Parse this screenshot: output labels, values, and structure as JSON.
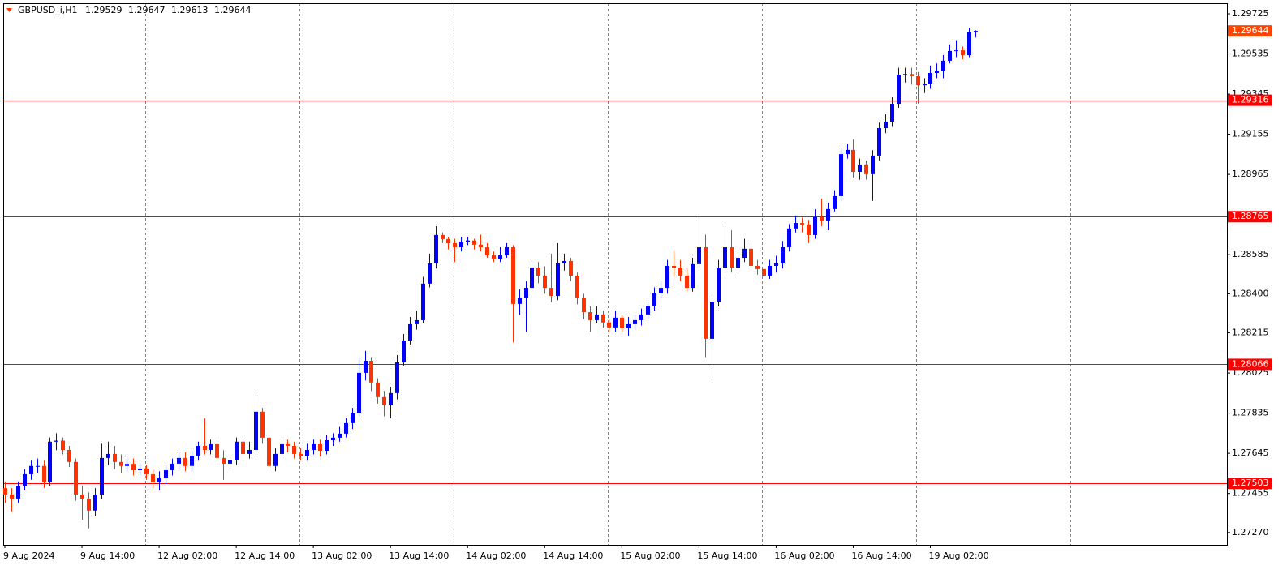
{
  "chart_data": {
    "type": "candlestick",
    "symbol": "GBPUSD_i,H1",
    "categories": [
      "9 Aug 2024",
      null,
      null,
      null,
      null,
      null,
      null,
      null,
      null,
      null,
      null,
      null,
      "9 Aug 14:00",
      null,
      null,
      null,
      null,
      null,
      null,
      null,
      null,
      null,
      null,
      null,
      "12 Aug 02:00",
      null,
      null,
      null,
      null,
      null,
      null,
      null,
      null,
      null,
      null,
      null,
      "12 Aug 14:00",
      null,
      null,
      null,
      null,
      null,
      null,
      null,
      null,
      null,
      null,
      null,
      "13 Aug 02:00",
      null,
      null,
      null,
      null,
      null,
      null,
      null,
      null,
      null,
      null,
      null,
      "13 Aug 14:00",
      null,
      null,
      null,
      null,
      null,
      null,
      null,
      null,
      null,
      null,
      null,
      "14 Aug 02:00",
      null,
      null,
      null,
      null,
      null,
      null,
      null,
      null,
      null,
      null,
      null,
      "14 Aug 14:00",
      null,
      null,
      null,
      null,
      null,
      null,
      null,
      null,
      null,
      null,
      null,
      "15 Aug 02:00",
      null,
      null,
      null,
      null,
      null,
      null,
      null,
      null,
      null,
      null,
      null,
      "15 Aug 14:00",
      null,
      null,
      null,
      null,
      null,
      null,
      null,
      null,
      null,
      null,
      null,
      "16 Aug 02:00",
      null,
      null,
      null,
      null,
      null,
      null,
      null,
      null,
      null,
      null,
      null,
      "16 Aug 14:00",
      null,
      null,
      null,
      null,
      null,
      null,
      null,
      null,
      null,
      null,
      null,
      "19 Aug 02:00",
      null,
      null,
      null,
      null,
      null,
      null,
      null
    ],
    "open": [
      1.2748,
      1.2745,
      1.27431,
      1.27489,
      1.27546,
      1.27585,
      1.27585,
      1.27508,
      1.277,
      1.27705,
      1.27661,
      1.27604,
      1.2745,
      1.27431,
      1.27374,
      1.2745,
      1.27623,
      1.27642,
      1.27604,
      1.27585,
      1.27595,
      1.27565,
      1.27573,
      1.27546,
      1.27508,
      1.27527,
      1.27565,
      1.27596,
      1.27623,
      1.27585,
      1.27634,
      1.2768,
      1.27661,
      1.27688,
      1.27623,
      1.27596,
      1.27611,
      1.277,
      1.27642,
      1.27661,
      1.27842,
      1.27719,
      1.27585,
      1.27642,
      1.27688,
      1.2768,
      1.27642,
      1.27634,
      1.27661,
      1.27688,
      1.27657,
      1.27707,
      1.27719,
      1.27738,
      1.27788,
      1.27834,
      1.28026,
      1.28083,
      1.2798,
      1.27911,
      1.27872,
      1.2793,
      1.28076,
      1.28179,
      1.28256,
      1.28275,
      1.28448,
      1.28544,
      1.28678,
      1.28659,
      1.28639,
      1.2862,
      1.28647,
      1.28652,
      1.28632,
      1.2862,
      1.28582,
      1.28563,
      1.28582,
      1.2862,
      1.28352,
      1.28379,
      1.28428,
      1.28524,
      1.28486,
      1.28428,
      1.2839,
      1.28544,
      1.28555,
      1.28486,
      1.28379,
      1.28313,
      1.28275,
      1.28302,
      1.28264,
      1.28241,
      1.28287,
      1.28237,
      1.28256,
      1.28275,
      1.28302,
      1.2834,
      1.28402,
      1.28428,
      1.28532,
      1.28524,
      1.28486,
      1.28428,
      1.2854,
      1.2862,
      1.28187,
      1.28363,
      1.28524,
      1.2862,
      1.28524,
      1.2857,
      1.28613,
      1.28532,
      1.28517,
      1.28486,
      1.28532,
      1.28544,
      1.2862,
      1.28709,
      1.28735,
      1.28728,
      1.28678,
      1.28762,
      1.28747,
      1.28801,
      1.28862,
      1.29061,
      1.29081,
      1.28977,
      1.29012,
      1.28966,
      1.29054,
      1.29184,
      1.29215,
      1.29299,
      1.29437,
      1.2944,
      1.2943,
      1.29387,
      1.29395,
      1.29445,
      1.29453,
      1.29503,
      1.29549,
      1.29552,
      1.29529,
      1.29639
    ],
    "high": [
      1.2751,
      1.2748,
      1.2751,
      1.2757,
      1.2761,
      1.2762,
      1.2761,
      1.2772,
      1.2774,
      1.2772,
      1.2768,
      1.2762,
      1.2749,
      1.2746,
      1.2748,
      1.2769,
      1.277,
      1.2768,
      1.2764,
      1.2763,
      1.2762,
      1.276,
      1.2759,
      1.2757,
      1.2756,
      1.2759,
      1.2762,
      1.2765,
      1.2765,
      1.2766,
      1.277,
      1.2781,
      1.2771,
      1.2771,
      1.2766,
      1.2764,
      1.2772,
      1.2773,
      1.277,
      1.2792,
      1.2786,
      1.2773,
      1.2767,
      1.2771,
      1.2771,
      1.277,
      1.2767,
      1.2769,
      1.2771,
      1.2771,
      1.2773,
      1.2774,
      1.2777,
      1.2781,
      1.2786,
      1.281,
      1.2813,
      1.281,
      1.28,
      1.2794,
      1.2796,
      1.2811,
      1.2821,
      1.2829,
      1.2832,
      1.2848,
      1.2859,
      1.2872,
      1.2869,
      1.2867,
      1.2866,
      1.2867,
      1.2867,
      1.2866,
      1.2868,
      1.2864,
      1.286,
      1.2862,
      1.2864,
      1.2863,
      1.2842,
      1.2846,
      1.2856,
      1.2855,
      1.2853,
      1.2859,
      1.2864,
      1.2859,
      1.2857,
      1.285,
      1.284,
      1.2834,
      1.2834,
      1.2832,
      1.2828,
      1.2832,
      1.283,
      1.2829,
      1.283,
      1.2833,
      1.2836,
      1.2843,
      1.2846,
      1.2856,
      1.286,
      1.2856,
      1.2852,
      1.2857,
      1.2876,
      1.2868,
      1.2838,
      1.2856,
      1.2872,
      1.287,
      1.2861,
      1.2866,
      1.2865,
      1.2856,
      1.286,
      1.2856,
      1.2858,
      1.2865,
      1.2873,
      1.2877,
      1.2876,
      1.2875,
      1.288,
      1.2885,
      1.2883,
      1.2889,
      1.2909,
      1.2911,
      1.2913,
      1.2904,
      1.2903,
      1.2908,
      1.2921,
      1.2925,
      1.2933,
      1.2947,
      1.2947,
      1.2947,
      1.2945,
      1.2942,
      1.2948,
      1.2949,
      1.2953,
      1.2958,
      1.296,
      1.2957,
      1.2966,
      1.29647
    ],
    "low": [
      1.2741,
      1.2737,
      1.2741,
      1.2747,
      1.2752,
      1.2755,
      1.2748,
      1.2749,
      1.2766,
      1.2764,
      1.2758,
      1.2742,
      1.2733,
      1.2729,
      1.2735,
      1.2743,
      1.2759,
      1.2757,
      1.2755,
      1.2756,
      1.2754,
      1.2754,
      1.2752,
      1.2748,
      1.2747,
      1.275,
      1.2754,
      1.2757,
      1.2756,
      1.2756,
      1.2761,
      1.2764,
      1.2764,
      1.2759,
      1.2752,
      1.2757,
      1.2759,
      1.2761,
      1.2762,
      1.2764,
      1.2769,
      1.2756,
      1.2756,
      1.2762,
      1.2765,
      1.2762,
      1.2761,
      1.2761,
      1.2764,
      1.2763,
      1.2764,
      1.2768,
      1.277,
      1.2772,
      1.2776,
      1.2782,
      1.2799,
      1.2794,
      1.2788,
      1.2782,
      1.2781,
      1.279,
      1.2806,
      1.2816,
      1.2823,
      1.2826,
      1.2843,
      1.2852,
      1.2864,
      1.2861,
      1.2855,
      1.286,
      1.2863,
      1.2861,
      1.286,
      1.2857,
      1.2855,
      1.2855,
      1.2857,
      1.2817,
      1.283,
      1.2822,
      1.284,
      1.2845,
      1.284,
      1.2836,
      1.2837,
      1.2851,
      1.2846,
      1.2835,
      1.2828,
      1.2822,
      1.2826,
      1.2824,
      1.2822,
      1.2822,
      1.2822,
      1.282,
      1.2823,
      1.2825,
      1.2828,
      1.2832,
      1.2838,
      1.284,
      1.2848,
      1.2846,
      1.2841,
      1.2841,
      1.2852,
      1.281,
      1.28,
      1.2834,
      1.285,
      1.285,
      1.2848,
      1.2855,
      1.2851,
      1.2849,
      1.2845,
      1.2847,
      1.285,
      1.2852,
      1.286,
      1.2869,
      1.2869,
      1.2864,
      1.2866,
      1.2872,
      1.287,
      1.2879,
      1.2884,
      1.2904,
      1.2895,
      1.2894,
      1.2894,
      1.2884,
      1.2903,
      1.2916,
      1.2919,
      1.2928,
      1.294,
      1.2939,
      1.293,
      1.2935,
      1.2937,
      1.2942,
      1.2942,
      1.2949,
      1.2952,
      1.2951,
      1.2952,
      1.29613
    ],
    "close": [
      1.2745,
      1.27431,
      1.27489,
      1.27546,
      1.27585,
      1.27585,
      1.27508,
      1.277,
      1.27705,
      1.27661,
      1.27604,
      1.2745,
      1.27431,
      1.27374,
      1.2745,
      1.27623,
      1.27642,
      1.27604,
      1.27585,
      1.27595,
      1.27565,
      1.27573,
      1.27546,
      1.27508,
      1.27527,
      1.27565,
      1.27596,
      1.27623,
      1.27585,
      1.27634,
      1.2768,
      1.27661,
      1.27688,
      1.27623,
      1.27596,
      1.27611,
      1.277,
      1.27642,
      1.27661,
      1.27842,
      1.27719,
      1.27585,
      1.27642,
      1.27688,
      1.2768,
      1.27642,
      1.27634,
      1.27661,
      1.27688,
      1.27657,
      1.27707,
      1.27719,
      1.27738,
      1.27788,
      1.27834,
      1.28026,
      1.28083,
      1.2798,
      1.27911,
      1.27872,
      1.2793,
      1.28076,
      1.28179,
      1.28256,
      1.28275,
      1.28448,
      1.28544,
      1.28678,
      1.28659,
      1.28639,
      1.2862,
      1.28647,
      1.28652,
      1.28632,
      1.2862,
      1.28582,
      1.28563,
      1.28582,
      1.2862,
      1.28352,
      1.28379,
      1.28428,
      1.28524,
      1.28486,
      1.28428,
      1.2839,
      1.28544,
      1.28555,
      1.28486,
      1.28379,
      1.28313,
      1.28275,
      1.28302,
      1.28264,
      1.28241,
      1.28287,
      1.28237,
      1.28256,
      1.28275,
      1.28302,
      1.2834,
      1.28402,
      1.28428,
      1.28532,
      1.28524,
      1.28486,
      1.28428,
      1.2854,
      1.2862,
      1.28187,
      1.28363,
      1.28524,
      1.2862,
      1.28524,
      1.2857,
      1.28613,
      1.28532,
      1.28517,
      1.28486,
      1.28532,
      1.28544,
      1.2862,
      1.28709,
      1.28735,
      1.28728,
      1.28678,
      1.28762,
      1.28747,
      1.28801,
      1.28862,
      1.29061,
      1.29081,
      1.28977,
      1.29012,
      1.28966,
      1.29054,
      1.29184,
      1.29215,
      1.29299,
      1.29437,
      1.2944,
      1.2943,
      1.29387,
      1.29395,
      1.29445,
      1.29453,
      1.29503,
      1.29549,
      1.29552,
      1.29529,
      1.29639,
      1.29644
    ],
    "up_color": "#0000ff",
    "down_color": "#ff3300",
    "levels": [
      1.29316,
      1.28765,
      1.28066,
      1.27503
    ],
    "level_color": "#ff0000",
    "price_color": "#ff4500",
    "ylim": [
      1.27212,
      1.29775
    ],
    "yticks": [
      {
        "value": 1.2727,
        "label": "1.27270"
      },
      1.27455,
      1.27645,
      1.27835,
      1.28025,
      1.28215,
      {
        "value": 1.284,
        "label": "1.28400"
      },
      1.28585,
      1.28965,
      1.29155,
      1.29345,
      1.29535,
      1.29725
    ]
  }
}
